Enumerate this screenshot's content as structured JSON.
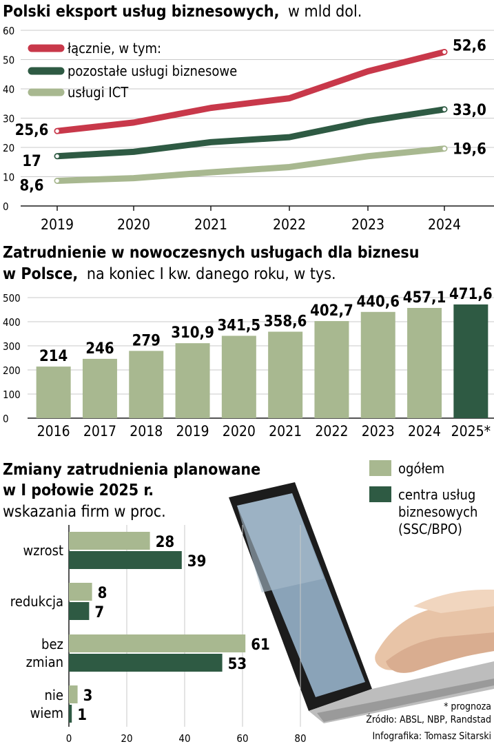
{
  "colors": {
    "red": "#c8384a",
    "dark_green": "#2e5a43",
    "light_green": "#a8b890",
    "grid": "#c9c9c9",
    "axis": "#1a1a1a"
  },
  "chart_data": [
    {
      "type": "line",
      "title_bold": "Polski eksport usług biznesowych,",
      "title_regular": "w mld dol.",
      "x": [
        "2019",
        "2020",
        "2021",
        "2022",
        "2023",
        "2024"
      ],
      "ylim": [
        0,
        60
      ],
      "yticks": [
        0,
        10,
        20,
        30,
        40,
        50,
        60
      ],
      "series": [
        {
          "name": "łącznie, w tym:",
          "color": "#c8384a",
          "values": [
            25.6,
            28.5,
            33.5,
            36.8,
            46.0,
            52.6
          ],
          "start_label": "25,6",
          "end_label": "52,6"
        },
        {
          "name": "pozostałe usługi biznesowe",
          "color": "#2e5a43",
          "values": [
            17.0,
            18.5,
            21.8,
            23.5,
            29.0,
            33.0
          ],
          "start_label": "17",
          "end_label": "33,0"
        },
        {
          "name": "usługi ICT",
          "color": "#a8b890",
          "values": [
            8.6,
            9.5,
            11.5,
            13.3,
            17.0,
            19.6
          ],
          "start_label": "8,6",
          "end_label": "19,6"
        }
      ],
      "grid": "horizontal"
    },
    {
      "type": "bar",
      "title_line1": "Zatrudnienie w nowoczesnych usługach dla biznesu",
      "title_line2_bold": "w Polsce,",
      "title_line2_regular": "na koniec I kw. danego roku, w tys.",
      "categories": [
        "2016",
        "2017",
        "2018",
        "2019",
        "2020",
        "2021",
        "2022",
        "2023",
        "2024",
        "2025*"
      ],
      "values": [
        214,
        246,
        279,
        310.9,
        341.5,
        358.6,
        402.7,
        440.6,
        457.1,
        471.6
      ],
      "value_labels": [
        "214",
        "246",
        "279",
        "310,9",
        "341,5",
        "358,6",
        "402,7",
        "440,6",
        "457,1",
        "471,6"
      ],
      "highlight_last": true,
      "ylim": [
        0,
        500
      ],
      "yticks": [
        0,
        100,
        200,
        300,
        400,
        500
      ],
      "grid": "horizontal"
    },
    {
      "type": "bar",
      "orientation": "horizontal",
      "title_line1": "Zmiany zatrudnienia planowane",
      "title_line2": "w I połowie 2025 r.",
      "subtitle": "wskazania firm w proc.",
      "categories": [
        [
          "wzrost"
        ],
        [
          "redukcja"
        ],
        [
          "bez",
          "zmian"
        ],
        [
          "nie",
          "wiem"
        ]
      ],
      "series": [
        {
          "name": "ogółem",
          "color": "#a8b890",
          "values": [
            28,
            8,
            61,
            3
          ]
        },
        {
          "name": "centra usług biznesowych (SSC/BPO)",
          "color": "#2e5a43",
          "values": [
            39,
            7,
            53,
            1
          ]
        }
      ],
      "legend_lines": [
        [
          "ogółem"
        ],
        [
          "centra usług",
          "biznesowych",
          "(SSC/BPO)"
        ]
      ],
      "xlim": [
        0,
        80
      ],
      "xticks": [
        0,
        20,
        40,
        60,
        80
      ],
      "grid": "vertical"
    }
  ],
  "footer": {
    "note": "* prognoza",
    "source": "Źródło: ABSL, NBP, Randstad",
    "credit": "Infografika: Tomasz Sitarski"
  }
}
